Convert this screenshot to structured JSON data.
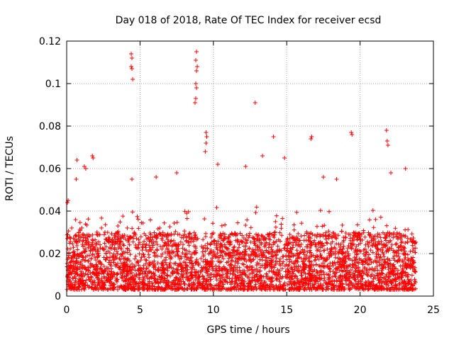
{
  "chart_data": {
    "type": "scatter",
    "title": "Day 018 of 2018, Rate Of TEC Index for receiver ecsd",
    "xlabel": "GPS time / hours",
    "ylabel": "ROTI / TECUs",
    "xlim": [
      0,
      25
    ],
    "ylim": [
      0,
      0.12
    ],
    "grid": true,
    "marker": "+",
    "color": "#ff0000",
    "x_ticks": [
      {
        "value": 0,
        "label": "0"
      },
      {
        "value": 5,
        "label": "5"
      },
      {
        "value": 10,
        "label": "10"
      },
      {
        "value": 15,
        "label": "15"
      },
      {
        "value": 20,
        "label": "20"
      },
      {
        "value": 25,
        "label": "25"
      }
    ],
    "y_ticks": [
      {
        "value": 0,
        "label": "0"
      },
      {
        "value": 0.02,
        "label": "0.02"
      },
      {
        "value": 0.04,
        "label": "0.04"
      },
      {
        "value": 0.06,
        "label": "0.06"
      },
      {
        "value": 0.08,
        "label": "0.08"
      },
      {
        "value": 0.1,
        "label": "0.1"
      },
      {
        "value": 0.12,
        "label": "0.12"
      }
    ],
    "data_x_range_hours": [
      0,
      23.8
    ],
    "bulk_band_roti": [
      0.003,
      0.03
    ],
    "outliers": [
      {
        "x": 4.4,
        "y": 0.114
      },
      {
        "x": 4.45,
        "y": 0.112
      },
      {
        "x": 4.4,
        "y": 0.108
      },
      {
        "x": 4.45,
        "y": 0.107
      },
      {
        "x": 4.5,
        "y": 0.102
      },
      {
        "x": 8.85,
        "y": 0.115
      },
      {
        "x": 8.8,
        "y": 0.111
      },
      {
        "x": 8.9,
        "y": 0.108
      },
      {
        "x": 8.85,
        "y": 0.106
      },
      {
        "x": 8.8,
        "y": 0.1
      },
      {
        "x": 8.85,
        "y": 0.098
      },
      {
        "x": 8.8,
        "y": 0.093
      },
      {
        "x": 8.75,
        "y": 0.091
      },
      {
        "x": 12.85,
        "y": 0.091
      },
      {
        "x": 9.5,
        "y": 0.077
      },
      {
        "x": 9.55,
        "y": 0.075
      },
      {
        "x": 9.5,
        "y": 0.072
      },
      {
        "x": 9.45,
        "y": 0.068
      },
      {
        "x": 21.8,
        "y": 0.078
      },
      {
        "x": 21.85,
        "y": 0.073
      },
      {
        "x": 21.9,
        "y": 0.071
      },
      {
        "x": 19.4,
        "y": 0.077
      },
      {
        "x": 19.45,
        "y": 0.076
      },
      {
        "x": 16.7,
        "y": 0.075
      },
      {
        "x": 16.65,
        "y": 0.074
      },
      {
        "x": 14.1,
        "y": 0.075
      },
      {
        "x": 13.35,
        "y": 0.066
      },
      {
        "x": 14.85,
        "y": 0.065
      },
      {
        "x": 1.75,
        "y": 0.066
      },
      {
        "x": 1.8,
        "y": 0.065
      },
      {
        "x": 0.7,
        "y": 0.064
      },
      {
        "x": 1.2,
        "y": 0.061
      },
      {
        "x": 1.3,
        "y": 0.06
      },
      {
        "x": 10.3,
        "y": 0.062
      },
      {
        "x": 12.2,
        "y": 0.061
      },
      {
        "x": 23.1,
        "y": 0.06
      },
      {
        "x": 22.1,
        "y": 0.058
      },
      {
        "x": 4.45,
        "y": 0.055
      },
      {
        "x": 6.1,
        "y": 0.056
      },
      {
        "x": 0.65,
        "y": 0.055
      },
      {
        "x": 7.5,
        "y": 0.058
      },
      {
        "x": 17.5,
        "y": 0.056
      },
      {
        "x": 0.1,
        "y": 0.045
      },
      {
        "x": 0.05,
        "y": 0.044
      },
      {
        "x": 18.4,
        "y": 0.055
      }
    ]
  }
}
